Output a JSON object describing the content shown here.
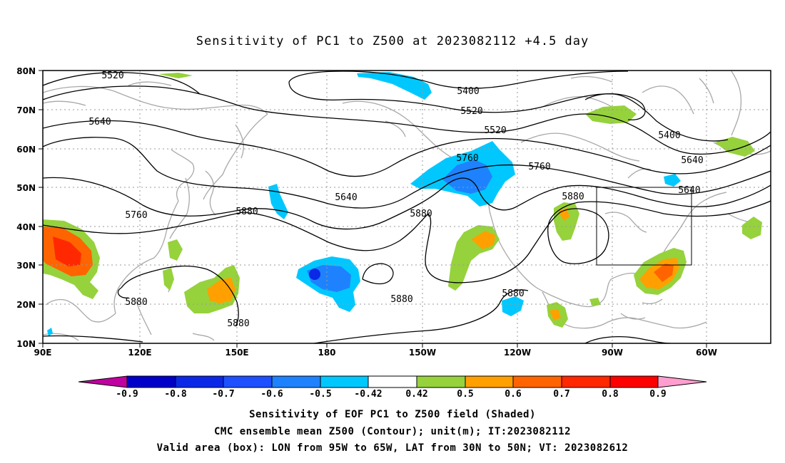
{
  "title": "Sensitivity of PC1 to Z500 at 2023082112 +4.5 day",
  "lat_labels": [
    "80N",
    "70N",
    "60N",
    "50N",
    "40N",
    "30N",
    "20N",
    "10N"
  ],
  "lon_labels": [
    "90E",
    "120E",
    "150E",
    "180",
    "150W",
    "120W",
    "90W",
    "60W"
  ],
  "contour_labels": [
    "5520",
    "5400",
    "5520",
    "5640",
    "5400",
    "5520",
    "5640",
    "5640",
    "5760",
    "5760",
    "5880",
    "5760",
    "5880",
    "5880",
    "5640",
    "5880",
    "5880",
    "5880",
    "5880"
  ],
  "colorbar": {
    "labels": [
      "-0.9",
      "-0.8",
      "-0.7",
      "-0.6",
      "-0.5",
      "-0.42",
      "0.42",
      "0.5",
      "0.6",
      "0.7",
      "0.8",
      "0.9"
    ],
    "colors": [
      "#c000a0",
      "#0000c8",
      "#0a28e6",
      "#1e50ff",
      "#1e82ff",
      "#00c8ff",
      "#ffffff",
      "#96d23c",
      "#ffa000",
      "#ff6400",
      "#ff2800",
      "#ff0000",
      "#ff9ecf"
    ]
  },
  "valid_box": {
    "lon_west": "95W",
    "lon_east": "65W",
    "lat_south": "30N",
    "lat_north": "50N"
  },
  "captions": [
    "Sensitivity of EOF PC1 to Z500 field (Shaded)",
    "CMC ensemble mean Z500 (Contour); unit(m); IT:2023082112",
    "Valid area (box): LON from 95W to 65W, LAT from 30N to 50N; VT: 2023082612"
  ]
}
